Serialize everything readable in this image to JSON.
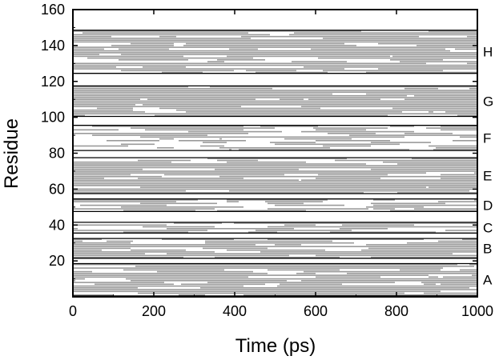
{
  "chart_data": {
    "type": "heatmap",
    "title": "",
    "xlabel": "Time (ps)",
    "ylabel": "Residue",
    "xlim": [
      0,
      1000
    ],
    "ylim": [
      0,
      160
    ],
    "xticks": [
      0,
      200,
      400,
      600,
      800,
      1000
    ],
    "yticks": [
      20,
      40,
      60,
      80,
      100,
      120,
      140,
      160
    ],
    "grid": false,
    "legend": "none",
    "colors": {
      "occupied": "#9a9a9a",
      "background": "#ffffff",
      "axis": "#000000"
    },
    "regions": [
      {
        "name": "A",
        "residue_range": [
          1,
          18
        ],
        "density": 0.82
      },
      {
        "name": "B",
        "residue_range": [
          22,
          32
        ],
        "density": 0.72
      },
      {
        "name": "C",
        "residue_range": [
          36,
          41
        ],
        "density": 0.6
      },
      {
        "name": "D",
        "residue_range": [
          48,
          54
        ],
        "density": 0.5
      },
      {
        "name": "E",
        "residue_range": [
          58,
          77
        ],
        "density": 0.88
      },
      {
        "name": "F",
        "residue_range": [
          82,
          95
        ],
        "density": 0.55
      },
      {
        "name": "G",
        "residue_range": [
          101,
          117
        ],
        "density": 0.9
      },
      {
        "name": "H",
        "residue_range": [
          125,
          148
        ],
        "density": 0.86
      }
    ]
  }
}
